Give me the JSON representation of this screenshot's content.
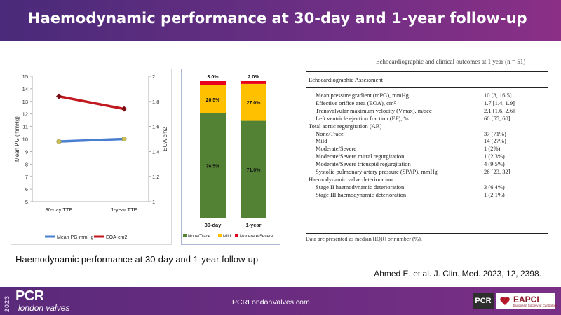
{
  "header": {
    "title": "Haemodynamic performance at 30-day and 1-year follow-up"
  },
  "chart_data": [
    {
      "type": "line",
      "categories": [
        "30-day TTE",
        "1-year TTE"
      ],
      "series": [
        {
          "name": "Mean PG-mmHg",
          "axis": "left",
          "color": "#4a7fd0",
          "values": [
            9.8,
            10.0
          ]
        },
        {
          "name": "EOA-cm2",
          "axis": "right",
          "color": "#c0191f",
          "values": [
            1.84,
            1.74
          ]
        }
      ],
      "ylabel_left": "Mean PG (mmHg)",
      "ylabel_right": "EOA-cm2",
      "ylim_left": [
        5,
        15
      ],
      "yticks_left": [
        "5",
        "6",
        "7",
        "8",
        "9",
        "10",
        "11",
        "12",
        "13",
        "14",
        "15"
      ],
      "ylim_right": [
        1,
        2
      ],
      "yticks_right": [
        "1",
        "1.2",
        "1.4",
        "1.6",
        "1.8",
        "2"
      ],
      "grid": false,
      "legend": "bottom"
    },
    {
      "type": "bar",
      "stacked": true,
      "categories": [
        "30-day",
        "1-year"
      ],
      "series": [
        {
          "name": "None/Trace",
          "color": "#548235",
          "values": [
            76.5,
            71.0
          ],
          "labels": [
            "76.5%",
            "71.0%"
          ]
        },
        {
          "name": "Mild",
          "color": "#ffc000",
          "values": [
            20.5,
            27.0
          ],
          "labels": [
            "20.5%",
            "27.0%"
          ]
        },
        {
          "name": "Moderate/Severe",
          "color": "#e8001c",
          "values": [
            3.0,
            2.0
          ],
          "labels": [
            "3.0%",
            "2.0%"
          ]
        }
      ],
      "ylim": [
        0,
        100
      ],
      "legend": "bottom"
    }
  ],
  "table": {
    "cut_text": "Echocardiographic and clinical outcomes at 1 year (n = 51)",
    "section_title": "Echocardiographic Assessment",
    "rows": [
      {
        "label": "Mean pressure gradient (mPG), mmHg",
        "value": "10 [8, 16.5]",
        "indent": 1
      },
      {
        "label": "Effective orifice area (EOA), cm²",
        "value": "1.7 [1.4, 1.9]",
        "indent": 1
      },
      {
        "label": "Transvalvular maximum velocity (Vmax), m/sec",
        "value": "2.1 [1.6, 2.6]",
        "indent": 1
      },
      {
        "label": "Left ventricle ejection fraction (EF), %",
        "value": "60 [55, 60]",
        "indent": 1
      },
      {
        "label": "Total aortic regurgitation (AR)",
        "value": "",
        "indent": 0
      },
      {
        "label": "None/Trace",
        "value": "37 (71%)",
        "indent": 1
      },
      {
        "label": "Mild",
        "value": "14 (27%)",
        "indent": 1
      },
      {
        "label": "Moderate/Severe",
        "value": "1 (2%)",
        "indent": 1
      },
      {
        "label": "Moderate/Severe mitral regurgitation",
        "value": "1 (2.3%)",
        "indent": 1
      },
      {
        "label": "Moderate/Severe tricuspid regurgitation",
        "value": "4 (9.5%)",
        "indent": 1
      },
      {
        "label": "Systolic pulmonary artery pressure (SPAP), mmHg",
        "value": "26 [23, 32]",
        "indent": 1
      },
      {
        "label": "Haemodynamic valve deterioration",
        "value": "",
        "indent": 0
      },
      {
        "label": "Stage II haemodynamic deterioration",
        "value": "3 (6.4%)",
        "indent": 1
      },
      {
        "label": "Stage III haemodynamic deterioration",
        "value": "1 (2.1%)",
        "indent": 1
      }
    ],
    "footnote": "Data are presented as median [IQR] or number (%)."
  },
  "caption": "Haemodynamic performance at 30-day and 1-year follow-up",
  "citation": "Ahmed E. et al. J. Clin. Med. 2023, 12, 2398.",
  "footer": {
    "year": "2023",
    "logo_main": "PCR",
    "logo_sub": "london valves",
    "url": "PCRLondonValves.com",
    "pcr_badge": "PCR",
    "eapci": "EAPCI",
    "eapci_sub": "European Society of Cardiology"
  }
}
